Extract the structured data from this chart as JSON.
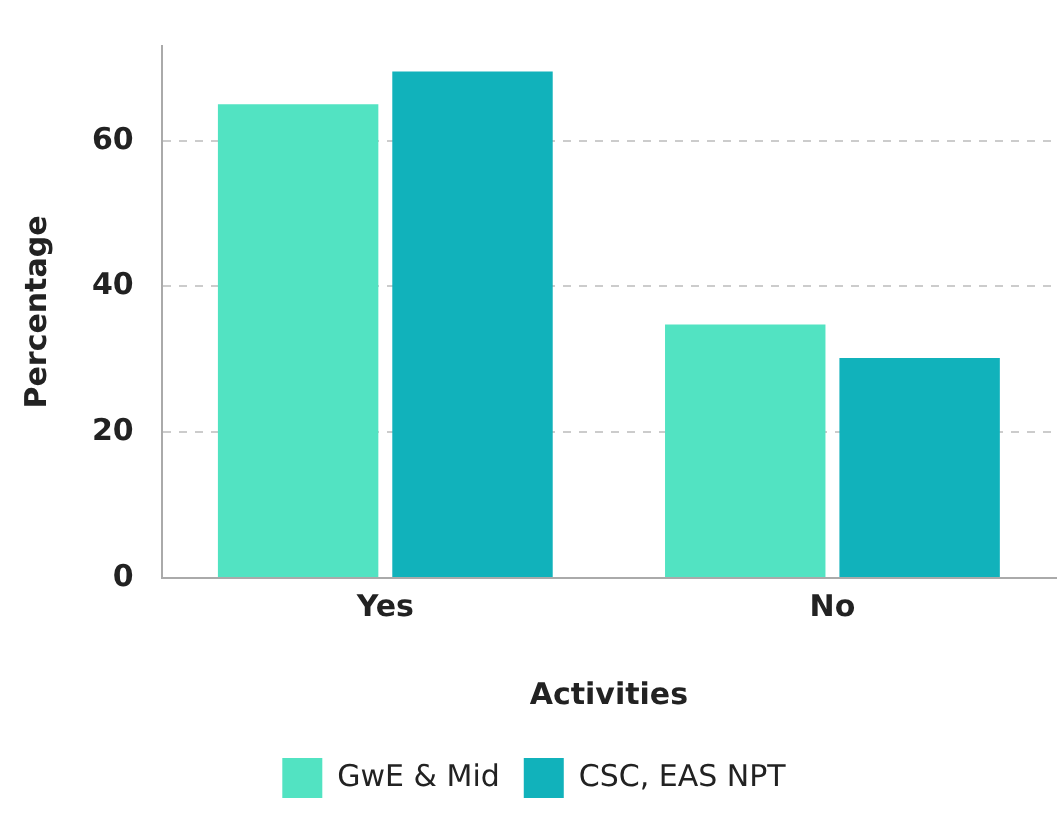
{
  "chart_data": {
    "type": "bar",
    "xlabel": "Activities",
    "ylabel": "Percentage",
    "categories": [
      "Yes",
      "No"
    ],
    "series": [
      {
        "name": "GwE & Mid",
        "color": "#52e3c2",
        "values": [
          65,
          34.8
        ]
      },
      {
        "name": "CSC, EAS NPT",
        "color": "#11b2bb",
        "values": [
          69.5,
          30.2
        ]
      }
    ],
    "ylim": [
      0,
      73
    ],
    "yticks": [
      0,
      20,
      40,
      60
    ],
    "grid": "y",
    "legend": "bottom"
  }
}
